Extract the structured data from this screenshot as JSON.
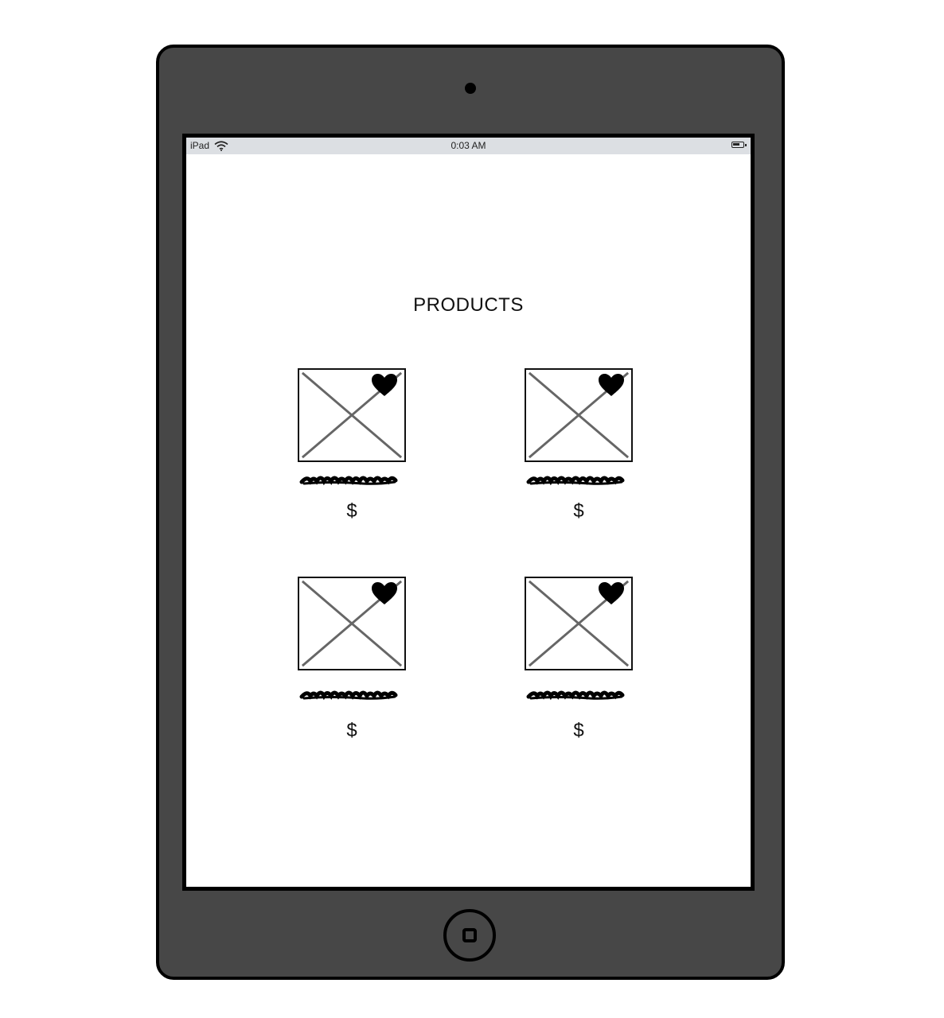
{
  "status_bar": {
    "device": "iPad",
    "time": "0:03 AM",
    "icons": {
      "wifi": "wifi-icon",
      "battery": "battery-icon"
    }
  },
  "page": {
    "title": "PRODUCTS"
  },
  "products": [
    {
      "price": "$",
      "icon": "heart-icon"
    },
    {
      "price": "$",
      "icon": "heart-icon"
    },
    {
      "price": "$",
      "icon": "heart-icon"
    },
    {
      "price": "$",
      "icon": "heart-icon"
    }
  ],
  "colors": {
    "bezel": "#474747",
    "status_bar_bg": "#dcdfe3",
    "placeholder_line": "#666666"
  }
}
